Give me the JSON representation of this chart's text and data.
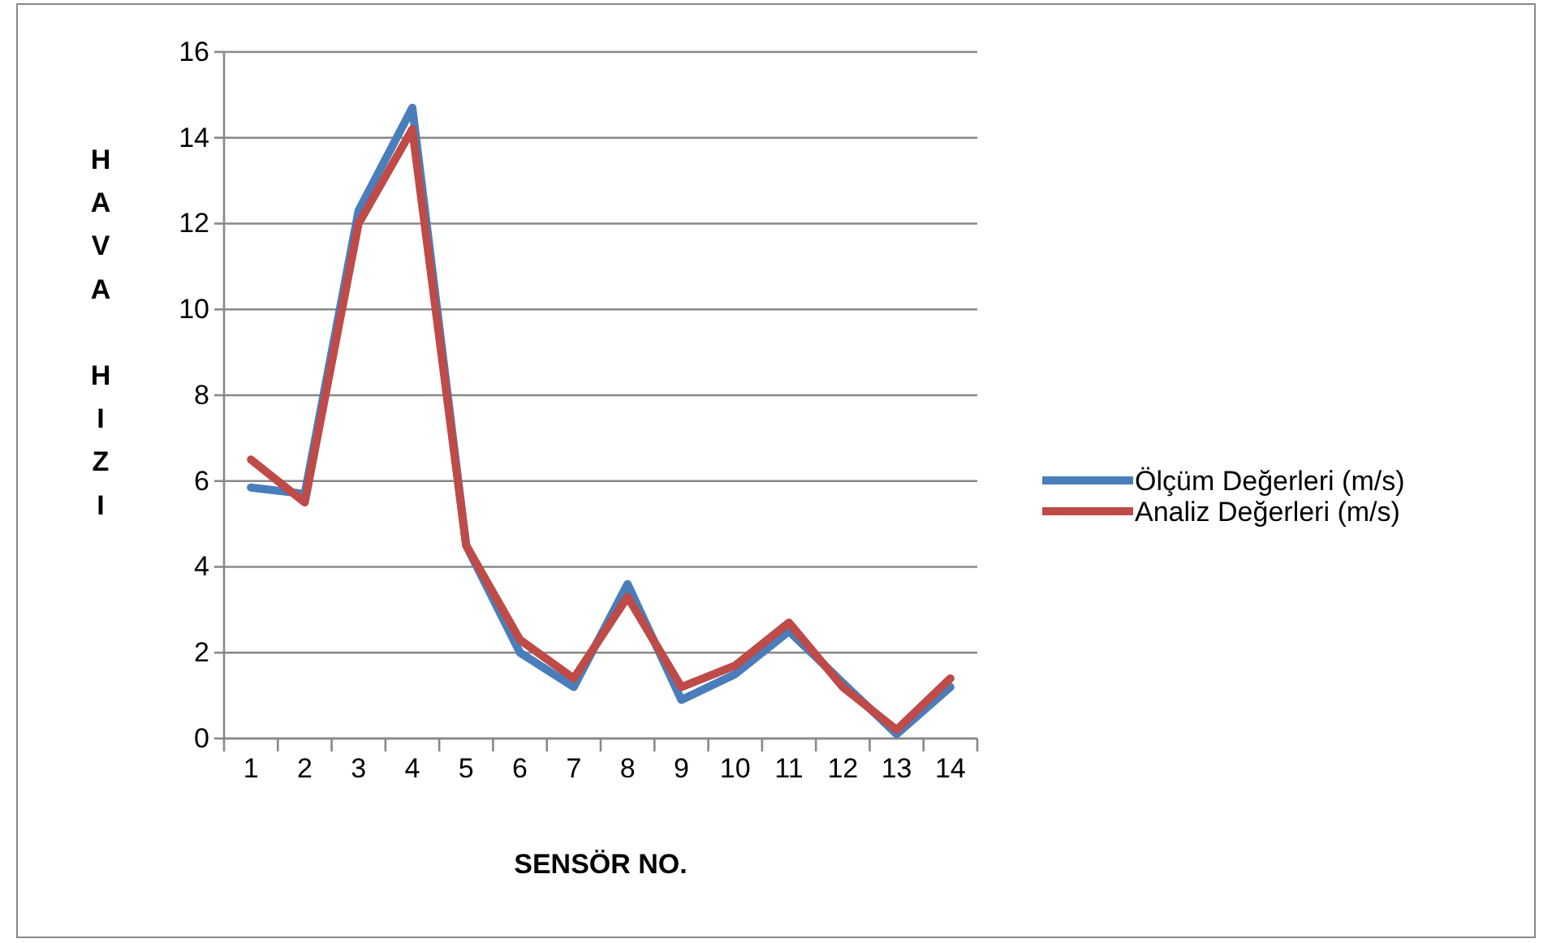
{
  "chart_data": {
    "type": "line",
    "xlabel": "SENSÖR NO.",
    "ylabel": "HAVA HIZI",
    "categories": [
      "1",
      "2",
      "3",
      "4",
      "5",
      "6",
      "7",
      "8",
      "9",
      "10",
      "11",
      "12",
      "13",
      "14"
    ],
    "series": [
      {
        "name": "Ölçüm Değerleri (m/s)",
        "color": "#4a7ebb",
        "values": [
          5.85,
          5.7,
          12.3,
          14.7,
          4.5,
          2.0,
          1.2,
          3.6,
          0.9,
          1.5,
          2.5,
          1.3,
          0.1,
          1.2
        ]
      },
      {
        "name": "Analiz Değerleri (m/s)",
        "color": "#be4b48",
        "values": [
          6.5,
          5.5,
          12.0,
          14.2,
          4.5,
          2.3,
          1.4,
          3.3,
          1.2,
          1.7,
          2.7,
          1.2,
          0.2,
          1.4
        ]
      }
    ],
    "ylim": [
      0,
      16
    ],
    "yticks": [
      0,
      2,
      4,
      6,
      8,
      10,
      12,
      14,
      16
    ],
    "grid": "y",
    "legend": "right",
    "marker": "none",
    "line_style": "solid"
  }
}
